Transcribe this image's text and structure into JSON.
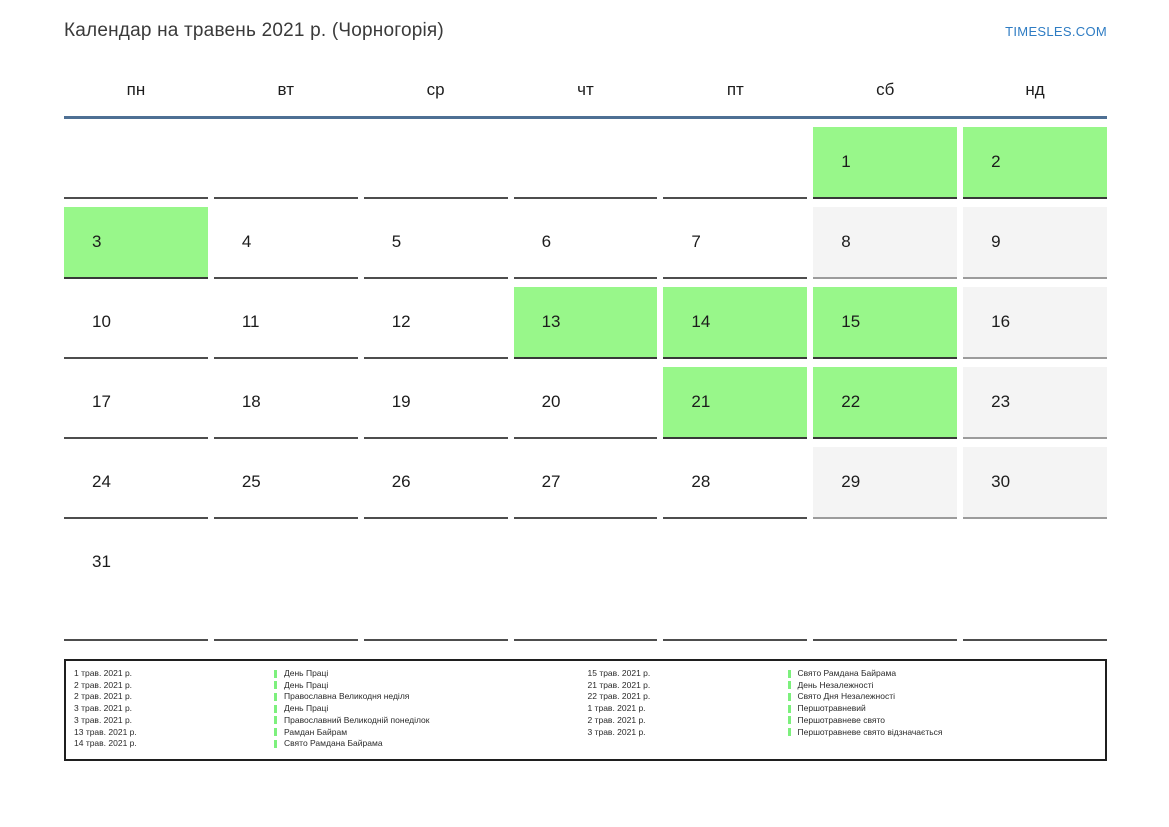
{
  "header": {
    "title": "Календар на травень 2021 р. (Чорногорія)",
    "site_link": "TIMESLES.COM"
  },
  "weekdays": [
    "пн",
    "вт",
    "ср",
    "чт",
    "пт",
    "сб",
    "нд"
  ],
  "weeks": [
    [
      {
        "day": "",
        "type": "empty"
      },
      {
        "day": "",
        "type": "empty"
      },
      {
        "day": "",
        "type": "empty"
      },
      {
        "day": "",
        "type": "empty"
      },
      {
        "day": "",
        "type": "empty"
      },
      {
        "day": "1",
        "type": "holiday"
      },
      {
        "day": "2",
        "type": "holiday"
      }
    ],
    [
      {
        "day": "3",
        "type": "holiday"
      },
      {
        "day": "4",
        "type": "normal"
      },
      {
        "day": "5",
        "type": "normal"
      },
      {
        "day": "6",
        "type": "normal"
      },
      {
        "day": "7",
        "type": "normal"
      },
      {
        "day": "8",
        "type": "weekend"
      },
      {
        "day": "9",
        "type": "weekend"
      }
    ],
    [
      {
        "day": "10",
        "type": "normal"
      },
      {
        "day": "11",
        "type": "normal"
      },
      {
        "day": "12",
        "type": "normal"
      },
      {
        "day": "13",
        "type": "holiday"
      },
      {
        "day": "14",
        "type": "holiday"
      },
      {
        "day": "15",
        "type": "holiday"
      },
      {
        "day": "16",
        "type": "weekend"
      }
    ],
    [
      {
        "day": "17",
        "type": "normal"
      },
      {
        "day": "18",
        "type": "normal"
      },
      {
        "day": "19",
        "type": "normal"
      },
      {
        "day": "20",
        "type": "normal"
      },
      {
        "day": "21",
        "type": "holiday"
      },
      {
        "day": "22",
        "type": "holiday"
      },
      {
        "day": "23",
        "type": "weekend"
      }
    ],
    [
      {
        "day": "24",
        "type": "normal"
      },
      {
        "day": "25",
        "type": "normal"
      },
      {
        "day": "26",
        "type": "normal"
      },
      {
        "day": "27",
        "type": "normal"
      },
      {
        "day": "28",
        "type": "normal"
      },
      {
        "day": "29",
        "type": "weekend"
      },
      {
        "day": "30",
        "type": "weekend"
      }
    ],
    [
      {
        "day": "31",
        "type": "normal"
      },
      {
        "day": "",
        "type": "empty"
      },
      {
        "day": "",
        "type": "empty"
      },
      {
        "day": "",
        "type": "empty"
      },
      {
        "day": "",
        "type": "empty"
      },
      {
        "day": "",
        "type": "empty"
      },
      {
        "day": "",
        "type": "empty"
      }
    ]
  ],
  "legend": {
    "left": [
      {
        "date": "1 трав. 2021 р.",
        "name": "День Праці"
      },
      {
        "date": "2 трав. 2021 р.",
        "name": "День Праці"
      },
      {
        "date": "2 трав. 2021 р.",
        "name": "Православна Великодня неділя"
      },
      {
        "date": "3 трав. 2021 р.",
        "name": "День Праці"
      },
      {
        "date": "3 трав. 2021 р.",
        "name": "Православний Великодній понеділок"
      },
      {
        "date": "13 трав. 2021 р.",
        "name": "Рамдан Байрам"
      },
      {
        "date": "14 трав. 2021 р.",
        "name": "Свято Рамдана Байрама"
      }
    ],
    "right": [
      {
        "date": "15 трав. 2021 р.",
        "name": "Свято Рамдана Байрама"
      },
      {
        "date": "21 трав. 2021 р.",
        "name": "День Незалежності"
      },
      {
        "date": "22 трав. 2021 р.",
        "name": "Свято Дня Незалежності"
      },
      {
        "date": "1 трав. 2021 р.",
        "name": "Першотравневий"
      },
      {
        "date": "2 трав. 2021 р.",
        "name": "Першотравневе свято"
      },
      {
        "date": "3 трав. 2021 р.",
        "name": "Першотравневе свято відзначається"
      }
    ]
  },
  "colors": {
    "holiday_green": "#98f78a",
    "weekend_gray": "#f4f4f4",
    "header_line_blue": "#4e7094",
    "link_blue": "#2e7cc3",
    "legend_tick_green": "#7df07d"
  }
}
